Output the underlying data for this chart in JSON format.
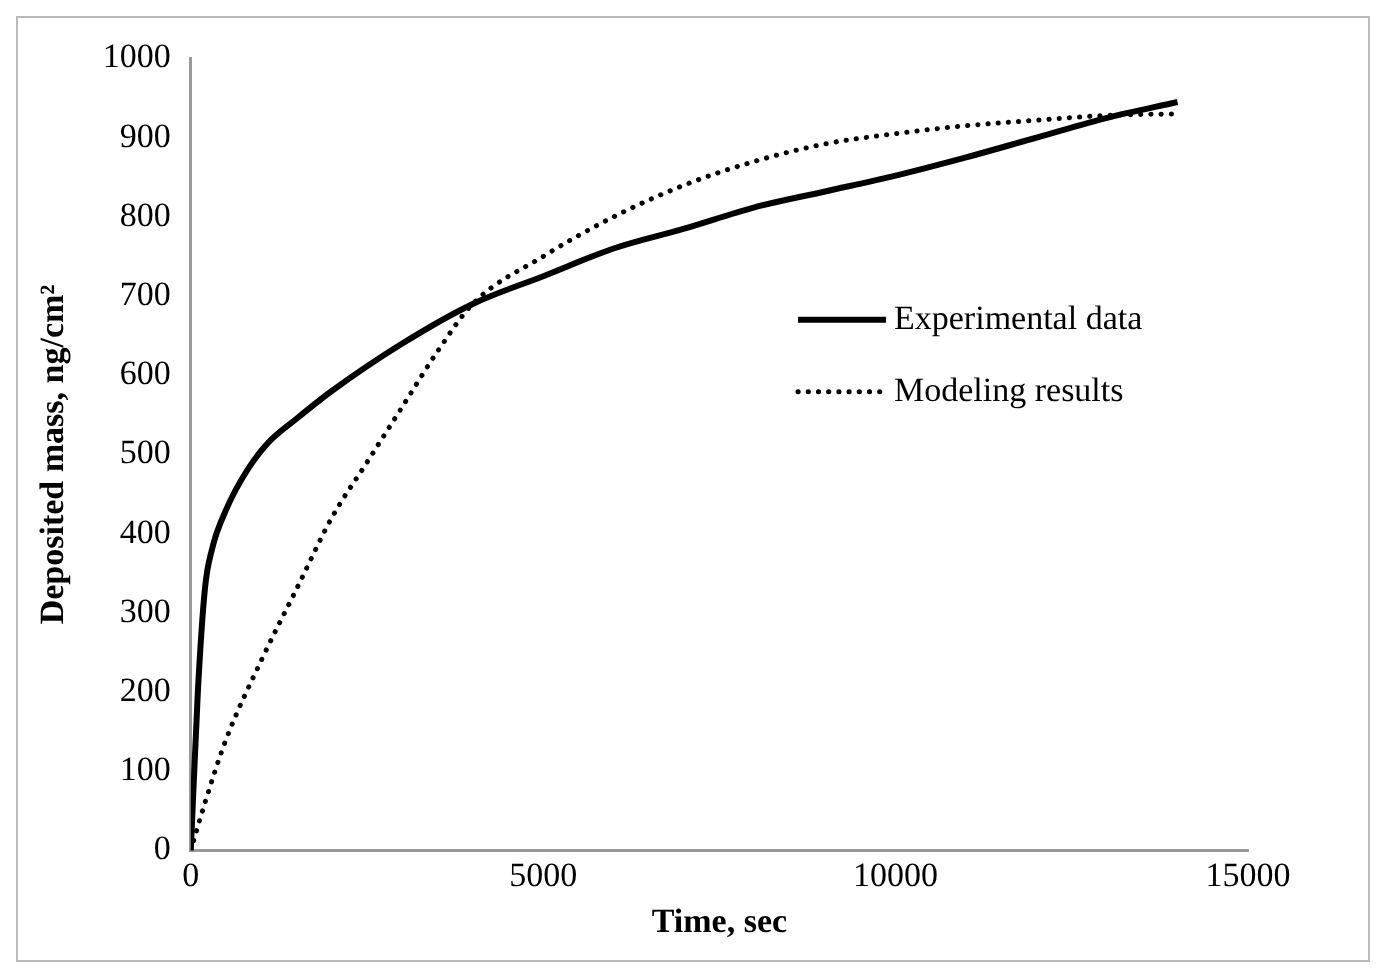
{
  "chart_data": {
    "type": "line",
    "xlabel": "Time, sec",
    "ylabel": "Deposited mass, ng/cm²",
    "xlim": [
      0,
      15000
    ],
    "xticks": [
      0,
      5000,
      10000,
      15000
    ],
    "ylim": [
      0,
      1000
    ],
    "yticks": [
      0,
      100,
      200,
      300,
      400,
      500,
      600,
      700,
      800,
      900,
      1000
    ],
    "grid": false,
    "legend": "right",
    "marker": "none",
    "series": [
      {
        "name": "Experimental data",
        "color": "#000000",
        "line_style": "solid",
        "x": [
          0,
          100,
          200,
          300,
          500,
          800,
          1100,
          1500,
          2000,
          3000,
          4000,
          5000,
          6000,
          7000,
          8000,
          9000,
          10000,
          11000,
          12000,
          13000,
          14000
        ],
        "values": [
          0,
          200,
          330,
          380,
          430,
          480,
          515,
          545,
          580,
          640,
          690,
          725,
          760,
          785,
          812,
          832,
          852,
          875,
          900,
          925,
          945
        ]
      },
      {
        "name": "Modeling results",
        "color": "#000000",
        "line_style": "dotted",
        "x": [
          0,
          200,
          500,
          1000,
          1500,
          2000,
          2500,
          3000,
          3500,
          4000,
          5000,
          6000,
          7000,
          8000,
          9000,
          10000,
          11000,
          12000,
          13000,
          14000
        ],
        "values": [
          0,
          60,
          140,
          240,
          330,
          420,
          490,
          560,
          630,
          690,
          750,
          800,
          840,
          870,
          892,
          905,
          915,
          922,
          928,
          930
        ]
      }
    ]
  }
}
